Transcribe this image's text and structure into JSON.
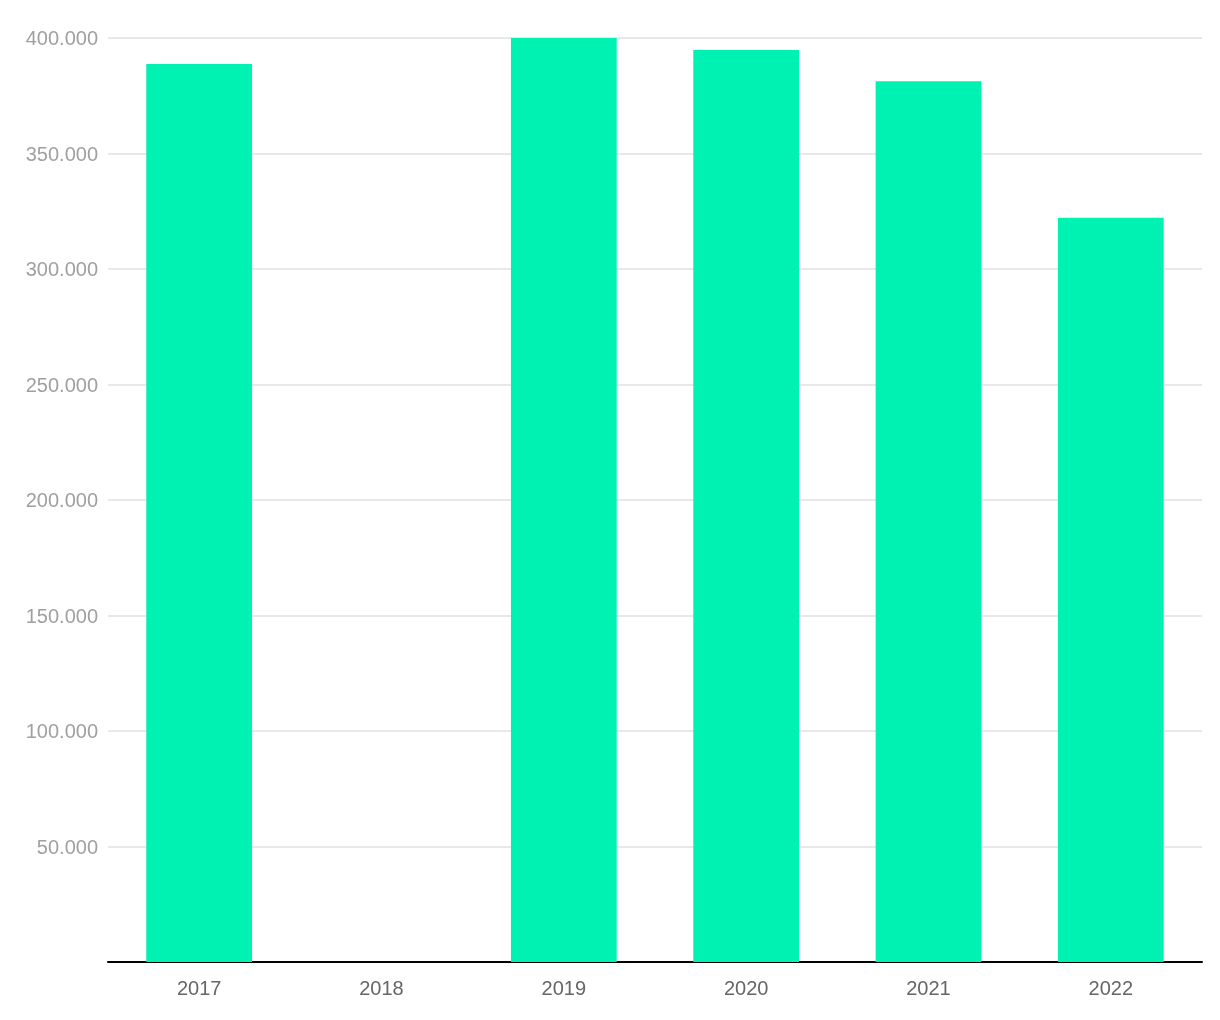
{
  "chart_data": {
    "type": "bar",
    "categories": [
      "2017",
      "2018",
      "2019",
      "2020",
      "2021",
      "2022"
    ],
    "values": [
      388700,
      null,
      400000,
      394800,
      381300,
      322200
    ],
    "color": "#00f2b3",
    "ylim": [
      0,
      400000
    ],
    "yticks": [
      {
        "value": 50000,
        "label": "50.000"
      },
      {
        "value": 100000,
        "label": "100.000"
      },
      {
        "value": 150000,
        "label": "150.000"
      },
      {
        "value": 200000,
        "label": "200.000"
      },
      {
        "value": 250000,
        "label": "250.000"
      },
      {
        "value": 300000,
        "label": "300.000"
      },
      {
        "value": 350000,
        "label": "350.000"
      },
      {
        "value": 400000,
        "label": "400.000"
      }
    ],
    "grid": "y"
  }
}
